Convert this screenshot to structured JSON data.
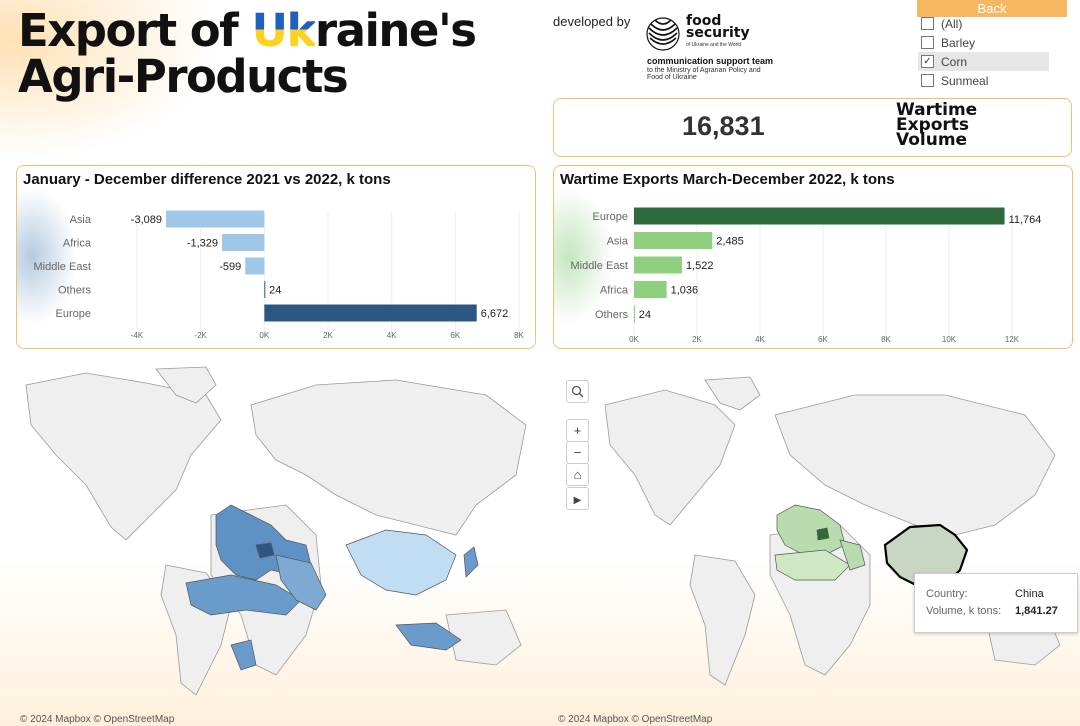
{
  "header": {
    "title_line1_a": "Export of ",
    "title_line1_ua": "Uk",
    "title_line1_b": "raine's",
    "title_line2": "Agri-Products",
    "developed_by": "developed by",
    "logo_text_1": "food",
    "logo_text_2": "security",
    "logo_sub": "of Ukraine and the World",
    "team": "communication support team",
    "team_sub": "to the Ministry of Agrarian Policy and Food of Ukraine"
  },
  "controls": {
    "back_label": "Back",
    "filter_options": [
      {
        "label": "(All)",
        "checked": false
      },
      {
        "label": "Barley",
        "checked": false
      },
      {
        "label": "Corn",
        "checked": true
      },
      {
        "label": "Sunmeal",
        "checked": false
      }
    ]
  },
  "kpi": {
    "value": "16,831",
    "label_1": "Wartime",
    "label_2": "Exports",
    "label_3": "Volume"
  },
  "colors": {
    "accent_border": "#f0c070",
    "diff_negative": "#9fc8e8",
    "diff_positive": "#2b5782",
    "wartime_top": "#2e6b3c",
    "wartime_other": "#8fd07e",
    "map_left_fill": "#6a9ccb",
    "map_right_fill": "#b9dcae"
  },
  "chart_data": [
    {
      "type": "bar",
      "orientation": "horizontal",
      "title": "January - December difference 2021 vs 2022, k tons",
      "categories": [
        "Asia",
        "Africa",
        "Middle East",
        "Others",
        "Europe"
      ],
      "values": [
        -3089,
        -1329,
        -599,
        24,
        6672
      ],
      "value_labels": [
        "-3,089",
        "-1,329",
        "-599",
        "24",
        "6,672"
      ],
      "xlim": [
        -4000,
        8000
      ],
      "xticks": [
        "-4K",
        "-2K",
        "0K",
        "2K",
        "4K",
        "6K",
        "8K"
      ],
      "grid": true
    },
    {
      "type": "bar",
      "orientation": "horizontal",
      "title": "Wartime Exports March-December 2022, k tons",
      "categories": [
        "Europe",
        "Asia",
        "Middle East",
        "Africa",
        "Others"
      ],
      "values": [
        11764,
        2485,
        1522,
        1036,
        24
      ],
      "value_labels": [
        "11,764",
        "2,485",
        "1,522",
        "1,036",
        "24"
      ],
      "xlim": [
        0,
        12000
      ],
      "xticks": [
        "0K",
        "2K",
        "4K",
        "6K",
        "8K",
        "10K",
        "12K"
      ],
      "grid": true
    }
  ],
  "maps": {
    "left_credit": "© 2024 Mapbox  © OpenStreetMap",
    "right_credit": "© 2024 Mapbox  © OpenStreetMap",
    "tooltip": {
      "country_label": "Country:",
      "country_value": "China",
      "volume_label": "Volume, k tons:",
      "volume_value": "1,841.27"
    }
  }
}
